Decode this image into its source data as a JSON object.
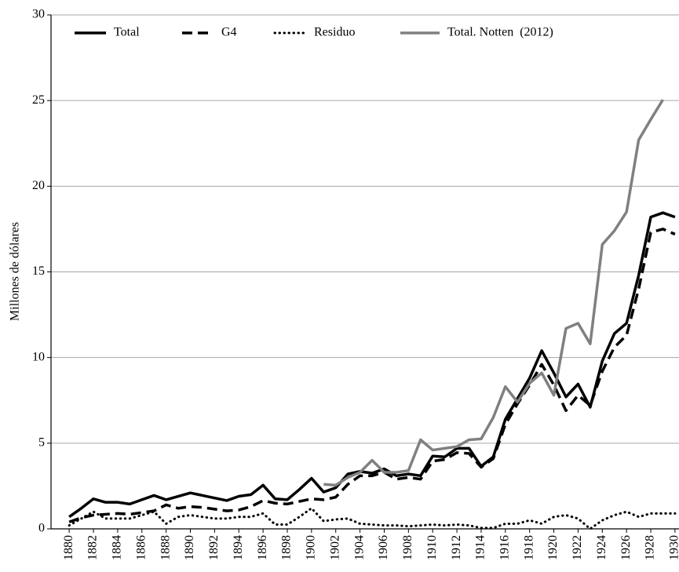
{
  "chart_data": {
    "type": "line",
    "y_label": "Millones de dólares",
    "x": [
      1880,
      1881,
      1882,
      1883,
      1884,
      1885,
      1886,
      1887,
      1888,
      1889,
      1890,
      1891,
      1892,
      1893,
      1894,
      1895,
      1896,
      1897,
      1898,
      1899,
      1900,
      1901,
      1902,
      1903,
      1904,
      1905,
      1906,
      1907,
      1908,
      1909,
      1910,
      1911,
      1912,
      1913,
      1914,
      1915,
      1916,
      1917,
      1918,
      1919,
      1920,
      1921,
      1922,
      1923,
      1924,
      1925,
      1926,
      1927,
      1928,
      1929,
      1930
    ],
    "xlim": [
      1878.5,
      1930.2
    ],
    "xticks": [
      1880,
      1882,
      1884,
      1886,
      1888,
      1890,
      1892,
      1894,
      1896,
      1898,
      1900,
      1902,
      1904,
      1906,
      1908,
      1910,
      1912,
      1914,
      1916,
      1918,
      1920,
      1922,
      1924,
      1926,
      1928,
      1930
    ],
    "ylim": [
      0,
      30
    ],
    "yticks": [
      0,
      5,
      10,
      15,
      20,
      25,
      30
    ],
    "grid": true,
    "legend": "top",
    "series": [
      {
        "name": "Total",
        "color": "#000000",
        "dash": "solid",
        "values": [
          0.7,
          1.2,
          1.75,
          1.55,
          1.55,
          1.45,
          1.7,
          1.95,
          1.7,
          1.9,
          2.1,
          1.95,
          1.8,
          1.65,
          1.9,
          2.0,
          2.55,
          1.75,
          1.7,
          2.3,
          2.95,
          2.15,
          2.4,
          3.2,
          3.35,
          3.25,
          3.5,
          3.1,
          3.2,
          3.1,
          4.25,
          4.2,
          4.7,
          4.7,
          3.65,
          4.2,
          6.4,
          7.6,
          8.8,
          10.4,
          9.1,
          7.7,
          8.45,
          7.1,
          9.8,
          11.4,
          12.0,
          14.8,
          18.2,
          18.45,
          18.2
        ]
      },
      {
        "name": "G4",
        "color": "#000000",
        "dash": "dashed",
        "values": [
          0.4,
          0.65,
          0.8,
          0.85,
          0.9,
          0.85,
          0.95,
          1.05,
          1.4,
          1.2,
          1.3,
          1.25,
          1.15,
          1.05,
          1.1,
          1.3,
          1.65,
          1.5,
          1.45,
          1.6,
          1.75,
          1.7,
          1.85,
          2.6,
          3.1,
          3.1,
          3.3,
          2.9,
          3.0,
          2.9,
          3.95,
          4.05,
          4.45,
          4.4,
          3.6,
          4.1,
          6.1,
          7.3,
          8.4,
          9.6,
          8.4,
          6.9,
          7.8,
          7.2,
          9.2,
          10.6,
          11.3,
          14.0,
          17.3,
          17.5,
          17.2
        ]
      },
      {
        "name": "Residuo",
        "color": "#000000",
        "dash": "dotted",
        "values": [
          0.2,
          0.6,
          1.0,
          0.6,
          0.6,
          0.6,
          0.8,
          1.0,
          0.3,
          0.7,
          0.8,
          0.7,
          0.6,
          0.6,
          0.7,
          0.7,
          0.9,
          0.25,
          0.25,
          0.7,
          1.2,
          0.45,
          0.55,
          0.6,
          0.3,
          0.25,
          0.2,
          0.2,
          0.15,
          0.2,
          0.25,
          0.2,
          0.25,
          0.2,
          0.05,
          0.05,
          0.3,
          0.3,
          0.5,
          0.3,
          0.7,
          0.8,
          0.6,
          0.0,
          0.5,
          0.8,
          1.0,
          0.7,
          0.9,
          0.9,
          0.9
        ]
      },
      {
        "name": "Total. Notten  (2012)",
        "color": "#808080",
        "dash": "solid",
        "values": [
          null,
          null,
          null,
          null,
          null,
          null,
          null,
          null,
          null,
          null,
          null,
          null,
          null,
          null,
          null,
          null,
          null,
          null,
          null,
          null,
          null,
          2.6,
          2.55,
          3.0,
          3.3,
          4.0,
          3.3,
          3.3,
          3.4,
          5.2,
          4.6,
          4.7,
          4.8,
          5.2,
          5.25,
          6.5,
          8.3,
          7.4,
          8.5,
          9.1,
          7.8,
          11.7,
          12.0,
          10.8,
          16.6,
          17.4,
          18.5,
          22.7,
          23.9,
          25.05,
          null
        ]
      }
    ]
  }
}
